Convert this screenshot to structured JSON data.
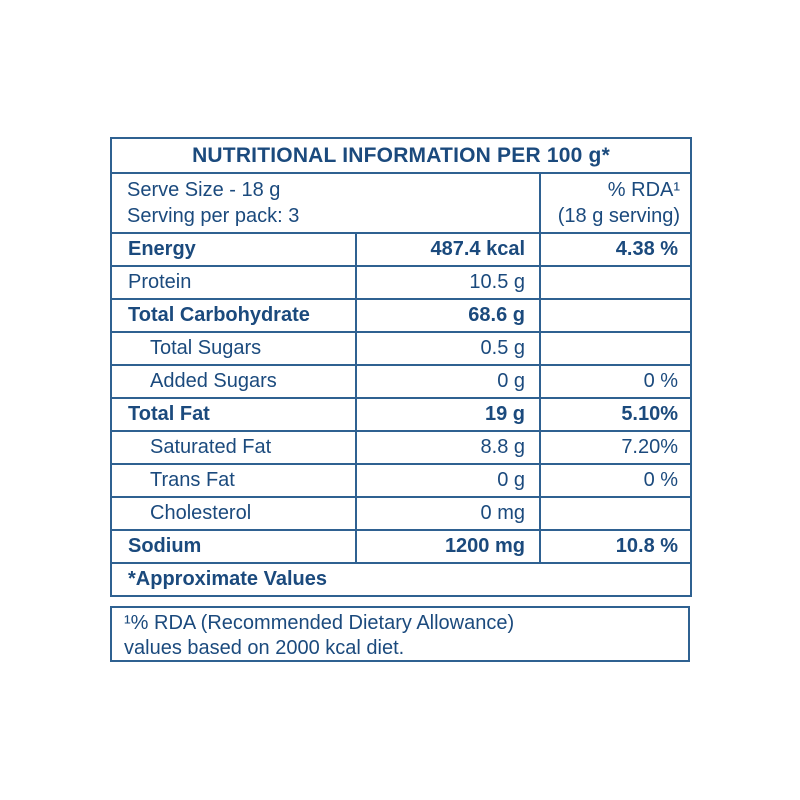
{
  "colors": {
    "text": "#1b4a7d",
    "border": "#2f6191",
    "background": "#ffffff"
  },
  "table": {
    "title": "NUTRITIONAL INFORMATION PER 100 g*",
    "header": {
      "serve_line1": "Serve Size - 18 g",
      "serve_line2": "Serving per pack: 3",
      "rda_line1": "% RDA¹",
      "rda_line2": "(18 g serving)"
    },
    "rows": [
      {
        "label": "Energy",
        "amount": "487.4 kcal",
        "rda": "4.38 %"
      },
      {
        "label": "Protein",
        "amount": "10.5 g",
        "rda": ""
      },
      {
        "label": "Total Carbohydrate",
        "amount": "68.6 g",
        "rda": ""
      },
      {
        "label": "Total Sugars",
        "amount": "0.5 g",
        "rda": ""
      },
      {
        "label": "Added Sugars",
        "amount": "0 g",
        "rda": "0 %"
      },
      {
        "label": "Total Fat",
        "amount": "19 g",
        "rda": "5.10%"
      },
      {
        "label": "Saturated Fat",
        "amount": "8.8 g",
        "rda": "7.20%"
      },
      {
        "label": "Trans Fat",
        "amount": "0 g",
        "rda": "0 %"
      },
      {
        "label": "Cholesterol",
        "amount": "0 mg",
        "rda": ""
      },
      {
        "label": "Sodium",
        "amount": "1200 mg",
        "rda": "10.8 %"
      }
    ],
    "footer": "*Approximate Values"
  },
  "note": {
    "line1": "¹% RDA (Recommended Dietary Allowance)",
    "line2": "values based on 2000 kcal diet."
  }
}
